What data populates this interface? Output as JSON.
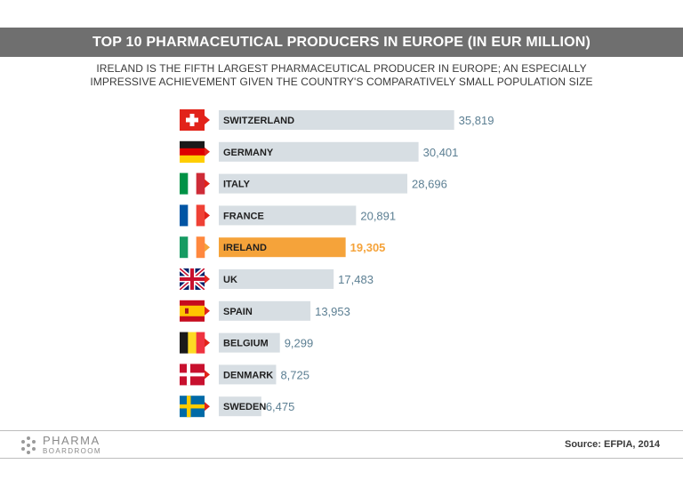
{
  "header": {
    "title": "TOP 10 PHARMACEUTICAL PRODUCERS IN EUROPE (IN EUR MILLION)",
    "subtitle_line1": "IRELAND IS THE FIFTH LARGEST PHARMACEUTICAL PRODUCER IN EUROPE; AN ESPECIALLY",
    "subtitle_line2": "IMPRESSIVE ACHIEVEMENT GIVEN THE COUNTRY'S COMPARATIVELY SMALL POPULATION SIZE"
  },
  "chart_data": {
    "type": "bar",
    "orientation": "horizontal",
    "title": "TOP 10 PHARMACEUTICAL PRODUCERS IN EUROPE (IN EUR MILLION)",
    "xlabel": "",
    "ylabel": "",
    "xlim": [
      0,
      36000
    ],
    "grid": false,
    "legend": "none",
    "categories": [
      "SWITZERLAND",
      "GERMANY",
      "ITALY",
      "FRANCE",
      "IRELAND",
      "UK",
      "SPAIN",
      "BELGIUM",
      "DENMARK",
      "SWEDEN"
    ],
    "values": [
      35819,
      30401,
      28696,
      20891,
      19305,
      17483,
      13953,
      9299,
      8725,
      6475
    ],
    "value_labels": [
      "35,819",
      "30,401",
      "28,696",
      "20,891",
      "19,305",
      "17,483",
      "13,953",
      "9,299",
      "8,725",
      "6,475"
    ],
    "flag_icons": [
      "switzerland-flag-icon",
      "germany-flag-icon",
      "italy-flag-icon",
      "france-flag-icon",
      "ireland-flag-icon",
      "uk-flag-icon",
      "spain-flag-icon",
      "belgium-flag-icon",
      "denmark-flag-icon",
      "sweden-flag-icon"
    ],
    "highlight": "IRELAND",
    "colors": {
      "bar": "#d7dee3",
      "highlight": "#f5a33a",
      "value": "#5c7f93"
    }
  },
  "footer": {
    "logo_top": "PHARMA",
    "logo_bottom": "BOARDROOM",
    "source": "Source: EFPIA, 2014"
  }
}
